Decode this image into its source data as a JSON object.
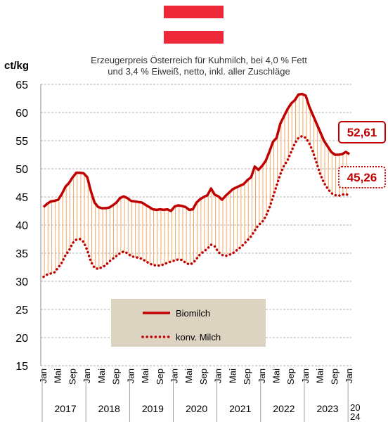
{
  "chart_data": {
    "type": "line",
    "y_unit": "ct/kg",
    "title_lines": [
      "Erzeugerpreis Österreich für Kuhmilch, bei 4,0 % Fett",
      "und 3,4 % Eiweiß, netto, inkl. aller Zuschläge"
    ],
    "categories": [
      "Jan",
      null,
      null,
      null,
      "Mai",
      null,
      null,
      null,
      "Sep",
      null,
      null,
      null,
      "Jan",
      null,
      null,
      null,
      "Mai",
      null,
      null,
      null,
      "Sep",
      null,
      null,
      null,
      "Jan",
      null,
      null,
      null,
      "Mai",
      null,
      null,
      null,
      "Sep",
      null,
      null,
      null,
      "Jan",
      null,
      null,
      null,
      "Mai",
      null,
      null,
      null,
      "Sep",
      null,
      null,
      null,
      "Jan",
      null,
      null,
      null,
      "Mai",
      null,
      null,
      null,
      "Sep",
      null,
      null,
      null,
      "Jan",
      null,
      null,
      null,
      "Mai",
      null,
      null,
      null,
      "Sep",
      null,
      null,
      null,
      "Jan",
      null,
      null,
      null,
      "Mai",
      null,
      null,
      null,
      "Sep",
      null,
      null,
      null,
      "Jan"
    ],
    "year_labels": [
      "2017",
      "2018",
      "2019",
      "2020",
      "2021",
      "2022",
      "2023",
      "2024"
    ],
    "series": [
      {
        "name": "Biomilch",
        "color": "#c00000",
        "style": "solid",
        "values": [
          43.2,
          43.8,
          44.2,
          44.3,
          44.5,
          45.5,
          46.8,
          47.5,
          48.5,
          49.3,
          49.3,
          49.2,
          48.5,
          46.0,
          44.0,
          43.2,
          43.0,
          43.0,
          43.1,
          43.5,
          44.0,
          44.8,
          45.1,
          44.8,
          44.3,
          44.2,
          44.1,
          44.0,
          43.6,
          43.2,
          42.8,
          42.7,
          42.8,
          42.7,
          42.8,
          42.5,
          43.3,
          43.5,
          43.4,
          43.2,
          42.7,
          42.8,
          44.0,
          44.6,
          45.0,
          45.3,
          46.5,
          45.4,
          45.1,
          44.5,
          45.2,
          45.8,
          46.4,
          46.7,
          47.0,
          47.3,
          48.0,
          48.5,
          50.4,
          49.8,
          50.5,
          51.4,
          53.0,
          54.8,
          55.5,
          58.0,
          59.3,
          60.6,
          61.6,
          62.2,
          63.2,
          63.3,
          63.0,
          61.0,
          59.5,
          58.0,
          56.5,
          55.0,
          54.0,
          53.0,
          52.5,
          52.5,
          52.6,
          53.0,
          52.61
        ],
        "value_labels": [
          null,
          null,
          null,
          null,
          null,
          null,
          null,
          null,
          null,
          null,
          null,
          null,
          null,
          null,
          null,
          null,
          null,
          null,
          null,
          null,
          null,
          null,
          null,
          null,
          null,
          null,
          null,
          null,
          null,
          null,
          null,
          null,
          null,
          null,
          null,
          null,
          null,
          null,
          null,
          null,
          null,
          null,
          null,
          null,
          null,
          null,
          null,
          null,
          null,
          null,
          null,
          null,
          null,
          null,
          null,
          null,
          null,
          null,
          null,
          null,
          null,
          null,
          null,
          null,
          null,
          null,
          null,
          null,
          null,
          null,
          null,
          null,
          null,
          null,
          null,
          null,
          null,
          null,
          null,
          null,
          null,
          null,
          null,
          null,
          "52,61"
        ]
      },
      {
        "name": "konv. Milch",
        "color": "#c00000",
        "style": "dotted",
        "values": [
          30.8,
          31.2,
          31.4,
          31.6,
          32.4,
          33.3,
          34.6,
          35.5,
          36.8,
          37.4,
          37.5,
          37.0,
          35.5,
          33.5,
          32.4,
          32.2,
          32.5,
          32.8,
          33.5,
          34.0,
          34.5,
          35.0,
          35.3,
          35.0,
          34.5,
          34.3,
          34.2,
          34.0,
          33.6,
          33.2,
          32.9,
          32.8,
          32.8,
          33.0,
          33.3,
          33.5,
          33.7,
          33.9,
          33.8,
          33.3,
          33.0,
          33.2,
          34.0,
          34.8,
          35.3,
          35.8,
          36.5,
          36.2,
          35.2,
          34.7,
          34.5,
          34.7,
          35.0,
          35.5,
          36.0,
          36.6,
          37.3,
          38.0,
          39.0,
          40.0,
          40.5,
          41.5,
          43.0,
          45.0,
          47.0,
          49.0,
          50.5,
          51.5,
          53.0,
          54.5,
          55.5,
          55.8,
          55.5,
          54.5,
          53.0,
          51.0,
          49.0,
          47.5,
          46.5,
          45.7,
          45.3,
          45.2,
          45.4,
          45.5,
          45.26
        ],
        "value_labels": [
          null,
          null,
          null,
          null,
          null,
          null,
          null,
          null,
          null,
          null,
          null,
          null,
          null,
          null,
          null,
          null,
          null,
          null,
          null,
          null,
          null,
          null,
          null,
          null,
          null,
          null,
          null,
          null,
          null,
          null,
          null,
          null,
          null,
          null,
          null,
          null,
          null,
          null,
          null,
          null,
          null,
          null,
          null,
          null,
          null,
          null,
          null,
          null,
          null,
          null,
          null,
          null,
          null,
          null,
          null,
          null,
          null,
          null,
          null,
          null,
          null,
          null,
          null,
          null,
          null,
          null,
          null,
          null,
          null,
          null,
          null,
          null,
          null,
          null,
          null,
          null,
          null,
          null,
          null,
          null,
          null,
          null,
          null,
          null,
          "45,26"
        ]
      }
    ],
    "range_fill_color": "#f4a460",
    "ylim": [
      15,
      65
    ],
    "yticks": [
      15,
      20,
      25,
      30,
      35,
      40,
      45,
      50,
      55,
      60,
      65
    ],
    "grid": true
  }
}
